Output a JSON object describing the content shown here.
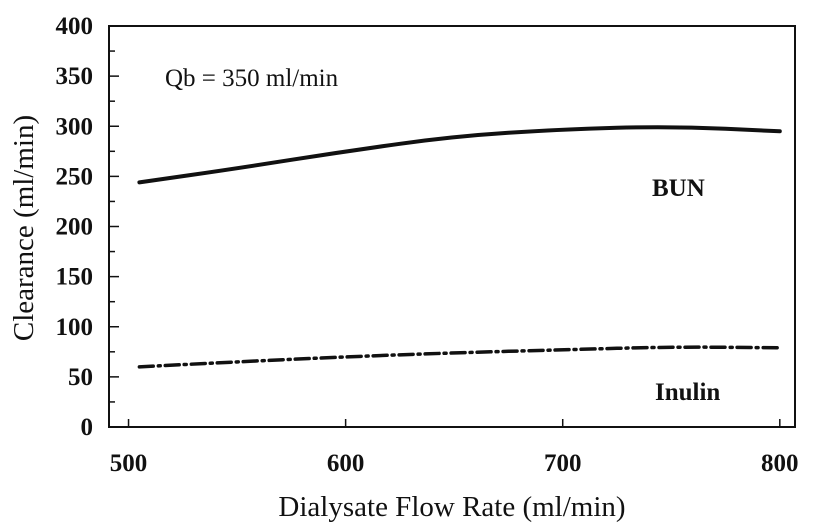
{
  "chart_data": {
    "type": "line",
    "title": "",
    "xlabel": "Dialysate Flow Rate (ml/min)",
    "ylabel": "Clearance (ml/min)",
    "xlim": [
      491,
      807
    ],
    "ylim": [
      0,
      400
    ],
    "xticks": [
      500,
      600,
      700,
      800
    ],
    "yticks": [
      0,
      50,
      100,
      150,
      200,
      250,
      300,
      350,
      400
    ],
    "grid": false,
    "annotation": "Qb = 350 ml/min",
    "series": [
      {
        "name": "BUN",
        "style": "solid",
        "x": [
          505,
          550,
          600,
          650,
          700,
          750,
          800
        ],
        "y": [
          244,
          258,
          275,
          290,
          297,
          300,
          295
        ]
      },
      {
        "name": "Inulin",
        "style": "dash-dot",
        "x": [
          505,
          550,
          600,
          650,
          700,
          750,
          800
        ],
        "y": [
          60,
          65,
          70,
          74,
          77,
          80,
          79
        ]
      }
    ],
    "colors": {
      "line": "#111111",
      "background": "#ffffff"
    }
  }
}
